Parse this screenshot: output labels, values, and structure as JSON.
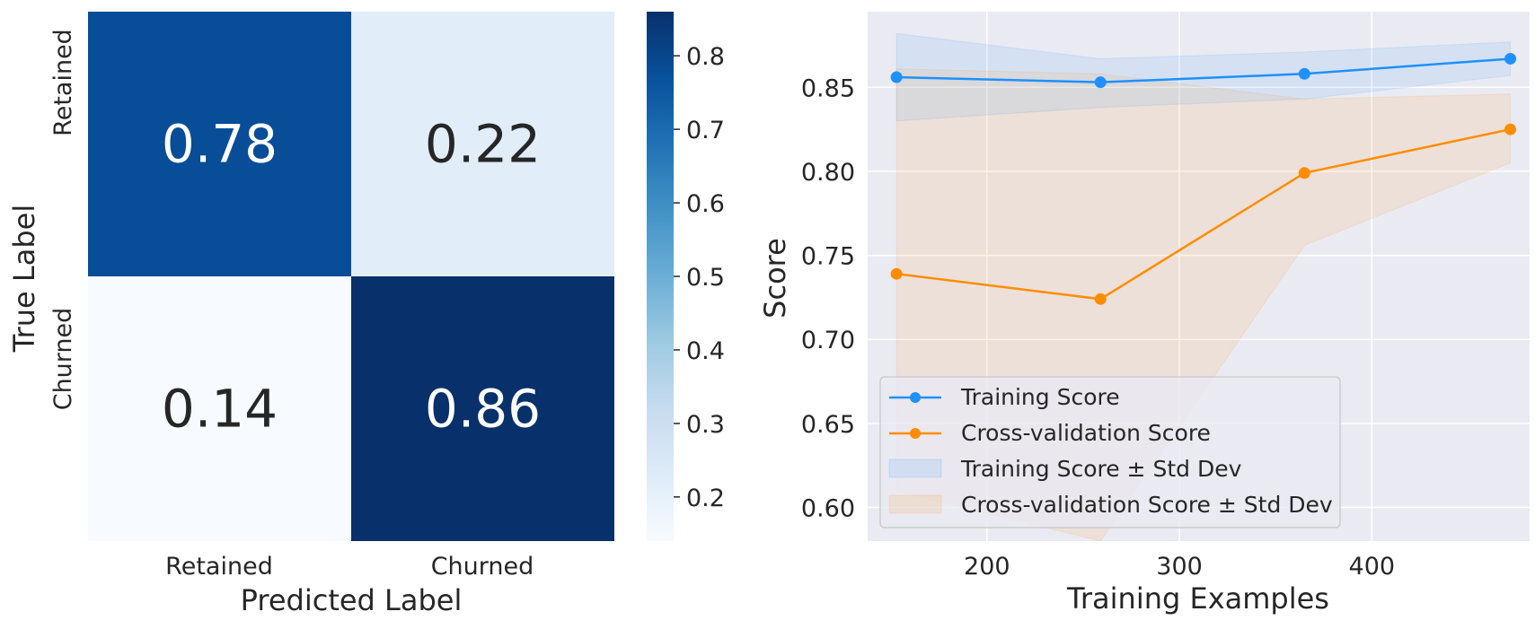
{
  "chart_data": [
    {
      "type": "heatmap",
      "xlabel": "Predicted Label",
      "ylabel": "True Label",
      "x_categories": [
        "Retained",
        "Churned"
      ],
      "y_categories": [
        "Retained",
        "Churned"
      ],
      "values": [
        [
          0.78,
          0.22
        ],
        [
          0.14,
          0.86
        ]
      ],
      "cell_labels": [
        [
          "0.78",
          "0.22"
        ],
        [
          "0.14",
          "0.86"
        ]
      ],
      "colormap": "Blues",
      "colorbar": {
        "range": [
          0.14,
          0.86
        ],
        "ticks": [
          0.2,
          0.3,
          0.4,
          0.5,
          0.6,
          0.7,
          0.8
        ],
        "tick_labels": [
          "0.2",
          "0.3",
          "0.4",
          "0.5",
          "0.6",
          "0.7",
          "0.8"
        ]
      }
    },
    {
      "type": "line",
      "xlabel": "Training Examples",
      "ylabel": "Score",
      "xlim": [
        138,
        482
      ],
      "ylim": [
        0.58,
        0.895
      ],
      "x_ticks": [
        200,
        300,
        400
      ],
      "x_tick_labels": [
        "200",
        "300",
        "400"
      ],
      "y_ticks": [
        0.6,
        0.65,
        0.7,
        0.75,
        0.8,
        0.85
      ],
      "y_tick_labels": [
        "0.60",
        "0.65",
        "0.70",
        "0.75",
        "0.80",
        "0.85"
      ],
      "grid": true,
      "legend_position": "lower-left",
      "x": [
        153,
        259,
        365,
        472
      ],
      "series": [
        {
          "name": "Training Score",
          "values": [
            0.856,
            0.853,
            0.858,
            0.867
          ],
          "color": "#1E90FF",
          "band_name": "Training Score ± Std Dev",
          "band_lower": [
            0.83,
            0.838,
            0.843,
            0.857
          ],
          "band_upper": [
            0.882,
            0.867,
            0.871,
            0.877
          ]
        },
        {
          "name": "Cross-validation Score",
          "values": [
            0.739,
            0.724,
            0.799,
            0.825
          ],
          "color": "#FF8C00",
          "band_name": "Cross-validation Score ± Std Dev",
          "band_lower": [
            0.61,
            0.58,
            0.756,
            0.805
          ],
          "band_upper": [
            0.861,
            0.858,
            0.843,
            0.846
          ]
        }
      ]
    }
  ]
}
